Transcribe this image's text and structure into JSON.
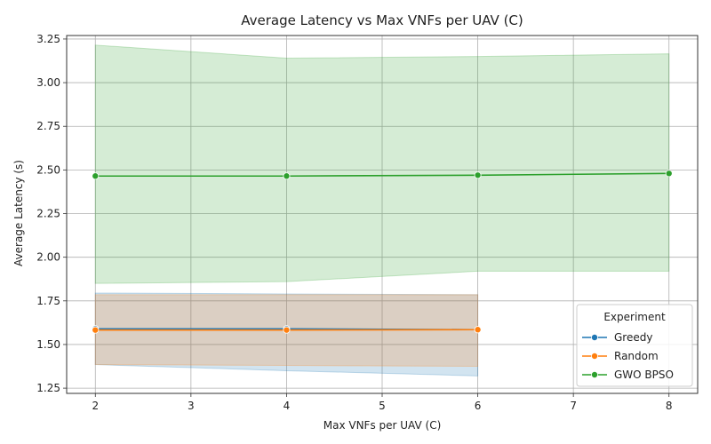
{
  "chart_data": {
    "type": "line",
    "title": "Average Latency vs Max VNFs per UAV (C)",
    "xlabel": "Max VNFs per UAV (C)",
    "ylabel": "Average Latency (s)",
    "xlim": [
      1.7,
      8.3
    ],
    "ylim": [
      1.22,
      3.27
    ],
    "x_ticks": [
      2,
      3,
      4,
      5,
      6,
      7,
      8
    ],
    "y_ticks": [
      1.25,
      1.5,
      1.75,
      2.0,
      2.25,
      2.5,
      2.75,
      3.0,
      3.25
    ],
    "y_tick_labels": [
      "1.25",
      "1.50",
      "1.75",
      "2.00",
      "2.25",
      "2.50",
      "2.75",
      "3.00",
      "3.25"
    ],
    "grid": true,
    "legend": {
      "title": "Experiment",
      "position": "lower-right"
    },
    "series": [
      {
        "name": "Greedy",
        "color": "#1f77b4",
        "x": [
          2,
          4,
          6
        ],
        "values": [
          1.59,
          1.59,
          1.585
        ],
        "ci_lower": [
          1.385,
          1.35,
          1.32
        ],
        "ci_upper": [
          1.795,
          1.79,
          1.785
        ]
      },
      {
        "name": "Random",
        "color": "#ff7f0e",
        "x": [
          2,
          4,
          6
        ],
        "values": [
          1.583,
          1.583,
          1.585
        ],
        "ci_lower": [
          1.385,
          1.38,
          1.375
        ],
        "ci_upper": [
          1.785,
          1.785,
          1.785
        ]
      },
      {
        "name": "GWO BPSO",
        "color": "#2ca02c",
        "x": [
          2,
          4,
          6,
          8
        ],
        "values": [
          2.465,
          2.465,
          2.47,
          2.48
        ],
        "ci_lower": [
          1.85,
          1.86,
          1.92,
          1.92
        ],
        "ci_upper": [
          3.215,
          3.14,
          3.15,
          3.165
        ]
      }
    ]
  }
}
